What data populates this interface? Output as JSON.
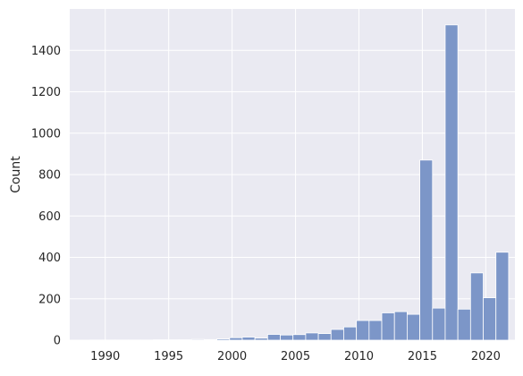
{
  "chart_data": {
    "type": "bar",
    "title": "",
    "xlabel": "",
    "ylabel": "Count",
    "grid": true,
    "background_color": "#eaeaf2",
    "grid_color": "#ffffff",
    "bar_color": "#7c96c8",
    "xlim": [
      1987.2,
      2022.3
    ],
    "ylim": [
      0,
      1600
    ],
    "xticks": [
      1990,
      1995,
      2000,
      2005,
      2010,
      2015,
      2020
    ],
    "yticks": [
      0,
      200,
      400,
      600,
      800,
      1000,
      1200,
      1400
    ],
    "bins": [
      {
        "x0": 1988.8,
        "x1": 1989.8,
        "count": 1
      },
      {
        "x0": 1989.8,
        "x1": 1990.8,
        "count": 1
      },
      {
        "x0": 1990.8,
        "x1": 1991.8,
        "count": 1
      },
      {
        "x0": 1991.8,
        "x1": 1992.8,
        "count": 1
      },
      {
        "x0": 1992.8,
        "x1": 1993.8,
        "count": 1
      },
      {
        "x0": 1993.8,
        "x1": 1994.8,
        "count": 2
      },
      {
        "x0": 1994.8,
        "x1": 1995.8,
        "count": 2
      },
      {
        "x0": 1995.8,
        "x1": 1996.8,
        "count": 2
      },
      {
        "x0": 1996.8,
        "x1": 1997.8,
        "count": 4
      },
      {
        "x0": 1997.8,
        "x1": 1998.8,
        "count": 3
      },
      {
        "x0": 1998.8,
        "x1": 1999.8,
        "count": 6
      },
      {
        "x0": 1999.8,
        "x1": 2000.8,
        "count": 12
      },
      {
        "x0": 2000.8,
        "x1": 2001.8,
        "count": 15
      },
      {
        "x0": 2001.8,
        "x1": 2002.8,
        "count": 10
      },
      {
        "x0": 2002.8,
        "x1": 2003.8,
        "count": 28
      },
      {
        "x0": 2003.8,
        "x1": 2004.8,
        "count": 25
      },
      {
        "x0": 2004.8,
        "x1": 2005.8,
        "count": 27
      },
      {
        "x0": 2005.8,
        "x1": 2006.8,
        "count": 35
      },
      {
        "x0": 2006.8,
        "x1": 2007.8,
        "count": 32
      },
      {
        "x0": 2007.8,
        "x1": 2008.8,
        "count": 52
      },
      {
        "x0": 2008.8,
        "x1": 2009.8,
        "count": 64
      },
      {
        "x0": 2009.8,
        "x1": 2010.8,
        "count": 95
      },
      {
        "x0": 2010.8,
        "x1": 2011.8,
        "count": 95
      },
      {
        "x0": 2011.8,
        "x1": 2012.8,
        "count": 132
      },
      {
        "x0": 2012.8,
        "x1": 2013.8,
        "count": 138
      },
      {
        "x0": 2013.8,
        "x1": 2014.8,
        "count": 125
      },
      {
        "x0": 2014.8,
        "x1": 2015.8,
        "count": 870
      },
      {
        "x0": 2015.8,
        "x1": 2016.8,
        "count": 155
      },
      {
        "x0": 2016.8,
        "x1": 2017.8,
        "count": 1523
      },
      {
        "x0": 2017.8,
        "x1": 2018.8,
        "count": 150
      },
      {
        "x0": 2018.8,
        "x1": 2019.8,
        "count": 325
      },
      {
        "x0": 2019.8,
        "x1": 2020.8,
        "count": 205
      },
      {
        "x0": 2020.8,
        "x1": 2021.8,
        "count": 425
      }
    ]
  }
}
